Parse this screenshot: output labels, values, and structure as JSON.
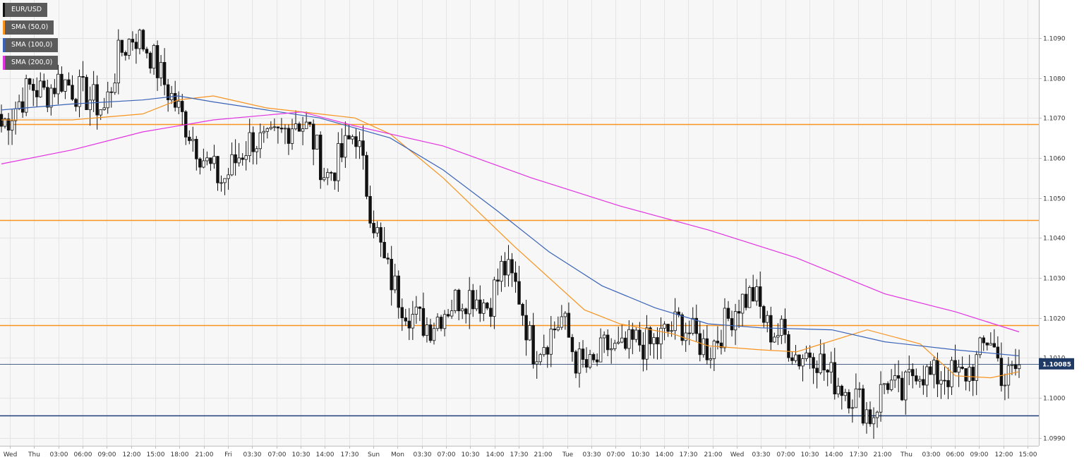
{
  "legend": [
    {
      "label": "EUR/USD",
      "color": "#111111"
    },
    {
      "label": "SMA (50,0)",
      "color": "#f7931e"
    },
    {
      "label": "SMA (100,0)",
      "color": "#3a63b8"
    },
    {
      "label": "SMA (200,0)",
      "color": "#e233e2"
    }
  ],
  "chart_data": {
    "type": "candlestick",
    "symbol": "EUR/USD",
    "ylim": [
      1.0988,
      1.10995
    ],
    "yticks": [
      "1.0990",
      "1.1000",
      "1.1010",
      "1.1020",
      "1.1030",
      "1.1040",
      "1.1050",
      "1.1060",
      "1.1070",
      "1.1080",
      "1.1090"
    ],
    "xticks": [
      "Wed",
      "Thu",
      "03:00",
      "06:00",
      "09:00",
      "12:00",
      "15:00",
      "18:00",
      "21:00",
      "Fri",
      "03:30",
      "07:00",
      "10:30",
      "14:00",
      "17:30",
      "Sun",
      "Mon",
      "03:30",
      "07:00",
      "10:30",
      "14:00",
      "17:30",
      "21:00",
      "Tue",
      "03:30",
      "07:00",
      "10:30",
      "14:00",
      "17:30",
      "21:00",
      "Wed",
      "03:30",
      "07:00",
      "10:30",
      "14:00",
      "17:30",
      "21:00",
      "Thu",
      "03:00",
      "06:00",
      "09:00",
      "12:00",
      "15:00"
    ],
    "horizontal_levels": [
      {
        "value": 1.10685,
        "color": "#f7931e"
      },
      {
        "value": 1.10445,
        "color": "#f7931e"
      },
      {
        "value": 1.10182,
        "color": "#f7931e"
      },
      {
        "value": 1.09956,
        "color": "#1f3f7a"
      },
      {
        "value": 1.10085,
        "color": "#4a5f85"
      }
    ],
    "current_price": {
      "label": "1.10085",
      "value": 1.10085
    },
    "close_anchors": [
      1.1068,
      1.1073,
      1.1078,
      1.1076,
      1.108,
      1.1077,
      1.1075,
      1.1072,
      1.1086,
      1.1091,
      1.1087,
      1.1079,
      1.1072,
      1.1065,
      1.1058,
      1.1054,
      1.106,
      1.1065,
      1.1063,
      1.1066,
      1.107,
      1.1066,
      1.1055,
      1.106,
      1.1067,
      1.1048,
      1.1033,
      1.1025,
      1.102,
      1.1018,
      1.1022,
      1.1025,
      1.1026,
      1.1023,
      1.1033,
      1.1027,
      1.1012,
      1.1015,
      1.102,
      1.1009,
      1.1007,
      1.1013,
      1.1011,
      1.1014,
      1.1013,
      1.1016,
      1.1019,
      1.1015,
      1.1012,
      1.1018,
      1.1024,
      1.1026,
      1.1017,
      1.1016,
      1.101,
      1.1012,
      1.1006,
      1.1003,
      1.1,
      1.0995,
      1.1005,
      1.1,
      1.1008,
      1.1005,
      1.1006,
      1.1005,
      1.1008,
      1.1016,
      1.1004,
      1.1008
    ],
    "candle_count": 288,
    "sma_series": [
      {
        "name": "SMA (50,0)",
        "color": "#f7931e",
        "points": [
          [
            0,
            1.10695
          ],
          [
            20,
            1.10695
          ],
          [
            40,
            1.1071
          ],
          [
            50,
            1.10745
          ],
          [
            60,
            1.10755
          ],
          [
            75,
            1.10725
          ],
          [
            90,
            1.1071
          ],
          [
            100,
            1.107
          ],
          [
            110,
            1.1066
          ],
          [
            125,
            1.1055
          ],
          [
            145,
            1.1038
          ],
          [
            165,
            1.1022
          ],
          [
            175,
            1.10185
          ],
          [
            190,
            1.1016
          ],
          [
            200,
            1.1013
          ],
          [
            215,
            1.1012
          ],
          [
            225,
            1.10115
          ],
          [
            245,
            1.1017
          ],
          [
            260,
            1.10135
          ],
          [
            270,
            1.10055
          ],
          [
            280,
            1.1005
          ],
          [
            288,
            1.10065
          ]
        ]
      },
      {
        "name": "SMA (100,0)",
        "color": "#3a63b8",
        "points": [
          [
            0,
            1.1072
          ],
          [
            20,
            1.10735
          ],
          [
            40,
            1.10745
          ],
          [
            50,
            1.10755
          ],
          [
            60,
            1.1074
          ],
          [
            75,
            1.1072
          ],
          [
            90,
            1.107
          ],
          [
            110,
            1.1065
          ],
          [
            125,
            1.1057
          ],
          [
            140,
            1.1047
          ],
          [
            155,
            1.10365
          ],
          [
            170,
            1.1028
          ],
          [
            185,
            1.10225
          ],
          [
            200,
            1.10185
          ],
          [
            215,
            1.10175
          ],
          [
            235,
            1.1017
          ],
          [
            250,
            1.1014
          ],
          [
            270,
            1.1012
          ],
          [
            288,
            1.10105
          ]
        ]
      },
      {
        "name": "SMA (200,0)",
        "color": "#e233e2",
        "points": [
          [
            0,
            1.10585
          ],
          [
            20,
            1.1062
          ],
          [
            40,
            1.10665
          ],
          [
            60,
            1.10695
          ],
          [
            85,
            1.10715
          ],
          [
            100,
            1.1068
          ],
          [
            125,
            1.1063
          ],
          [
            150,
            1.1055
          ],
          [
            175,
            1.1048
          ],
          [
            200,
            1.1042
          ],
          [
            225,
            1.1035
          ],
          [
            250,
            1.1026
          ],
          [
            270,
            1.10215
          ],
          [
            288,
            1.10165
          ]
        ]
      }
    ]
  }
}
